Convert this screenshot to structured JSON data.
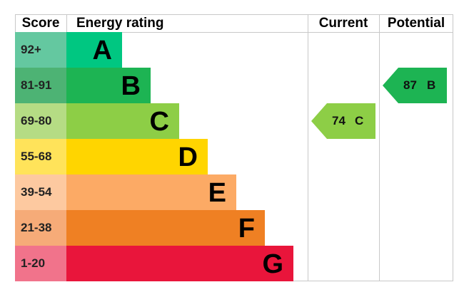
{
  "headers": {
    "score": "Score",
    "energy": "Energy rating",
    "current": "Current",
    "potential": "Potential"
  },
  "chart_data": {
    "type": "bar",
    "categories": [
      "A",
      "B",
      "C",
      "D",
      "E",
      "F",
      "G"
    ],
    "score_ranges": [
      "92+",
      "81-91",
      "69-80",
      "55-68",
      "39-54",
      "21-38",
      "1-20"
    ],
    "band_colors": [
      "#00c781",
      "#1db453",
      "#8dce46",
      "#ffd500",
      "#fcaa65",
      "#ef8023",
      "#e9153b"
    ],
    "score_colors": [
      "#64c8a0",
      "#4db374",
      "#b5dc84",
      "#ffe35a",
      "#fdc9a0",
      "#f6ab78",
      "#f1738b"
    ],
    "current": {
      "value": 74,
      "band": "C",
      "color": "#8dce46"
    },
    "potential": {
      "value": 87,
      "band": "B",
      "color": "#1db453"
    }
  }
}
